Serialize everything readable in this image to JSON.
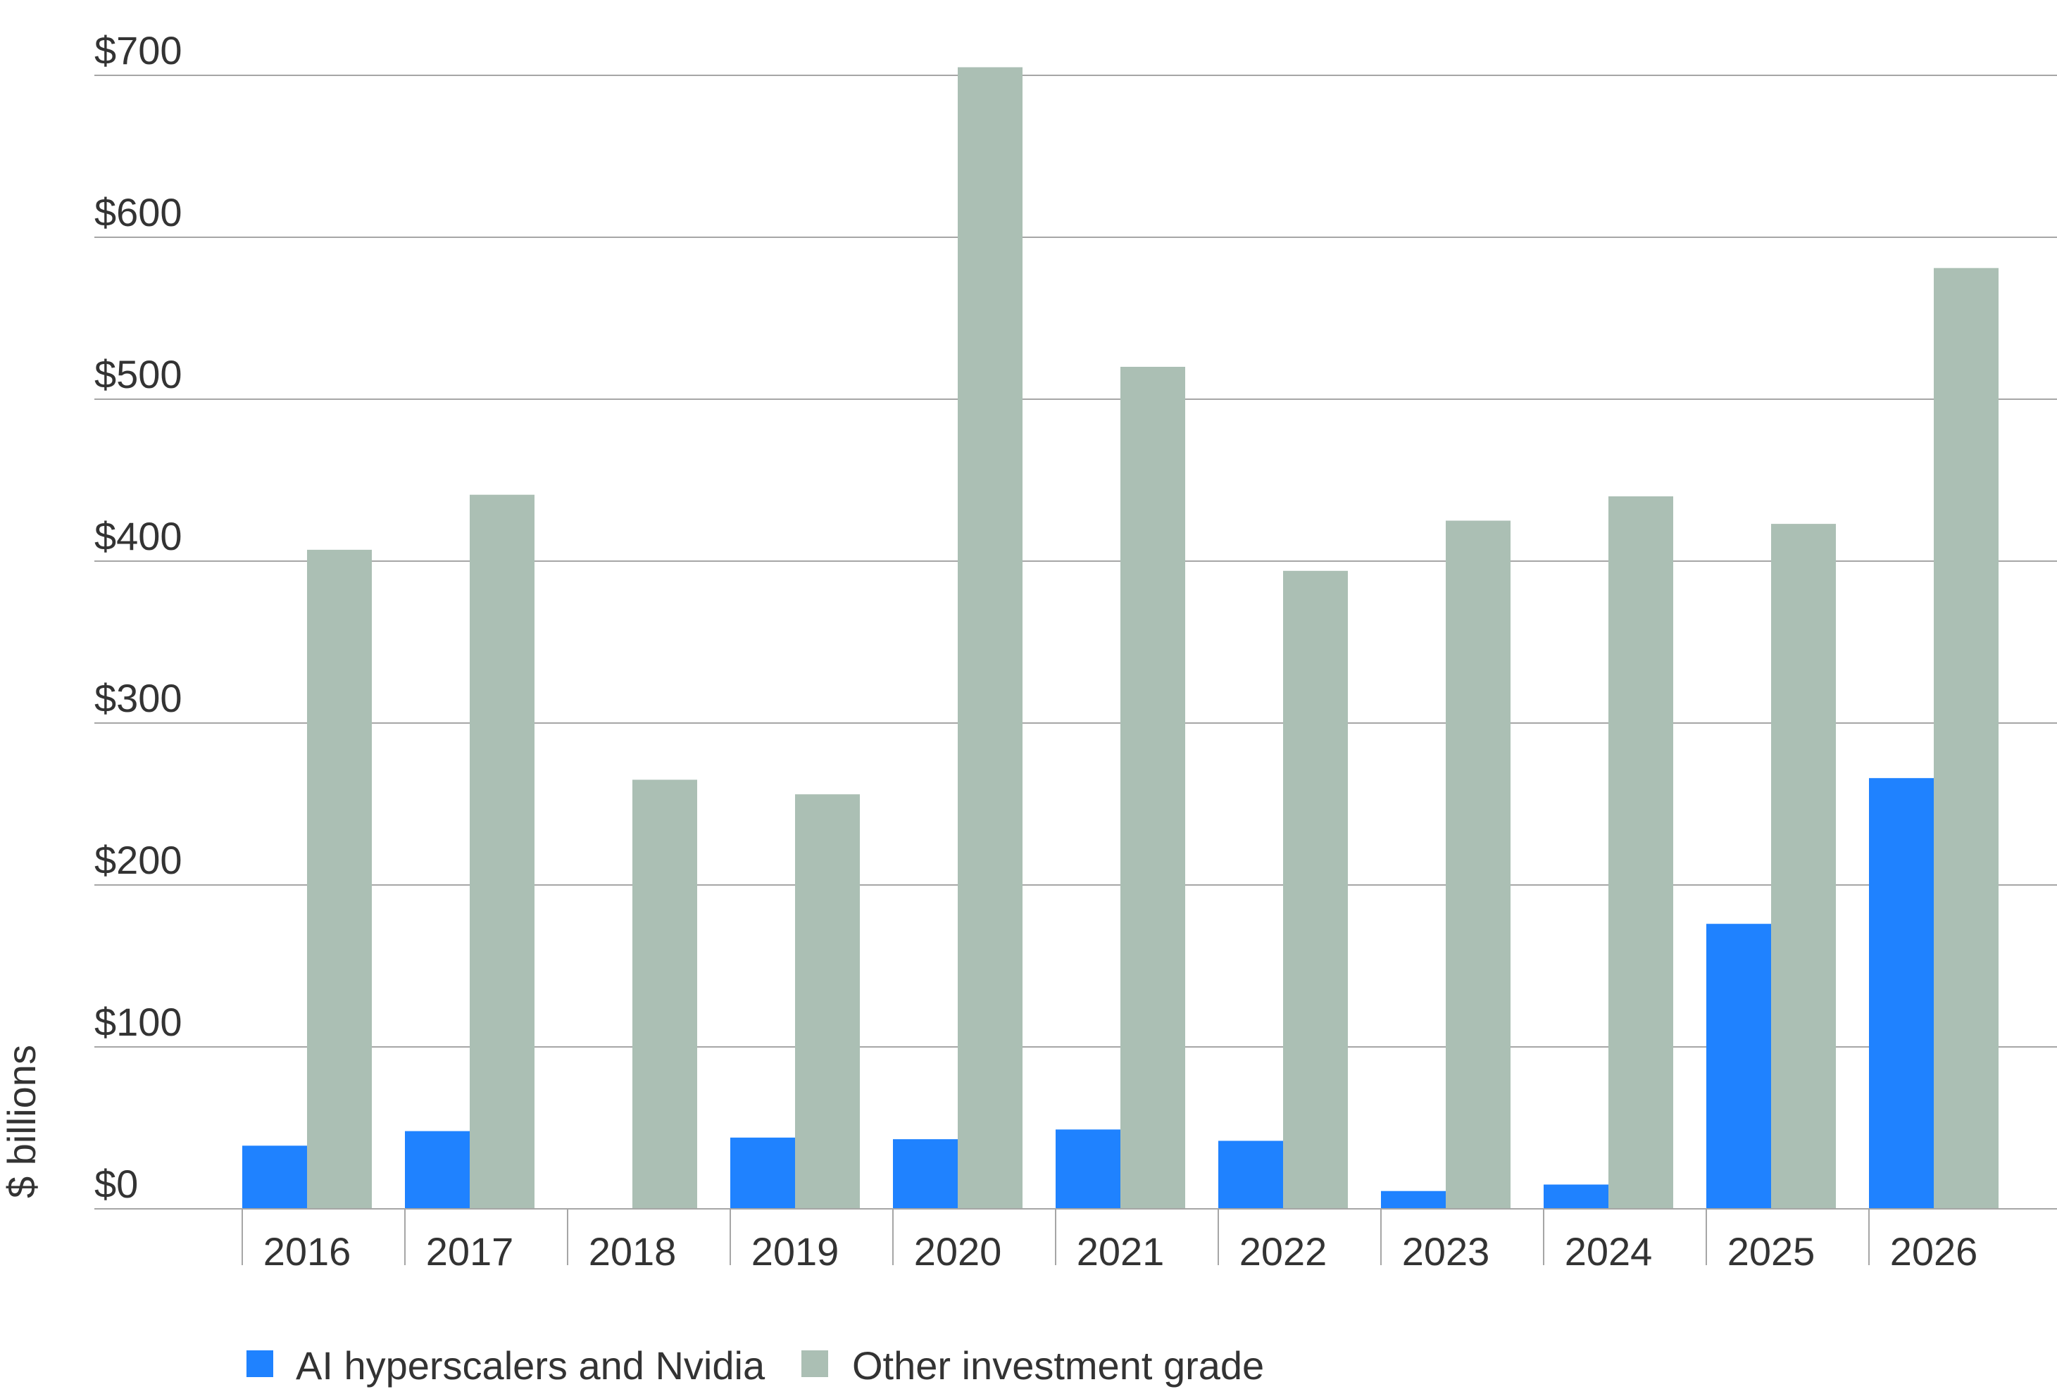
{
  "chart_data": {
    "type": "bar",
    "title": "",
    "xlabel": "",
    "ylabel": "$ billions",
    "ylim": [
      0,
      700
    ],
    "y_ticks": [
      0,
      100,
      200,
      300,
      400,
      500,
      600,
      700
    ],
    "y_tick_labels": [
      "$0",
      "$100",
      "$200",
      "$300",
      "$400",
      "$500",
      "$600",
      "$700"
    ],
    "categories": [
      "2016",
      "2017",
      "2018",
      "2019",
      "2020",
      "2021",
      "2022",
      "2023",
      "2024",
      "2025",
      "2026"
    ],
    "series": [
      {
        "name": "AI hyperscalers and Nvidia",
        "color": "#1f82ff",
        "values": [
          39,
          48,
          0,
          44,
          43,
          49,
          42,
          11,
          15,
          176,
          266
        ]
      },
      {
        "name": "Other investment grade",
        "color": "#abbfb4",
        "values": [
          407,
          441,
          265,
          256,
          705,
          520,
          394,
          425,
          440,
          423,
          581
        ]
      }
    ],
    "grid": true,
    "legend": "bottom-left"
  }
}
